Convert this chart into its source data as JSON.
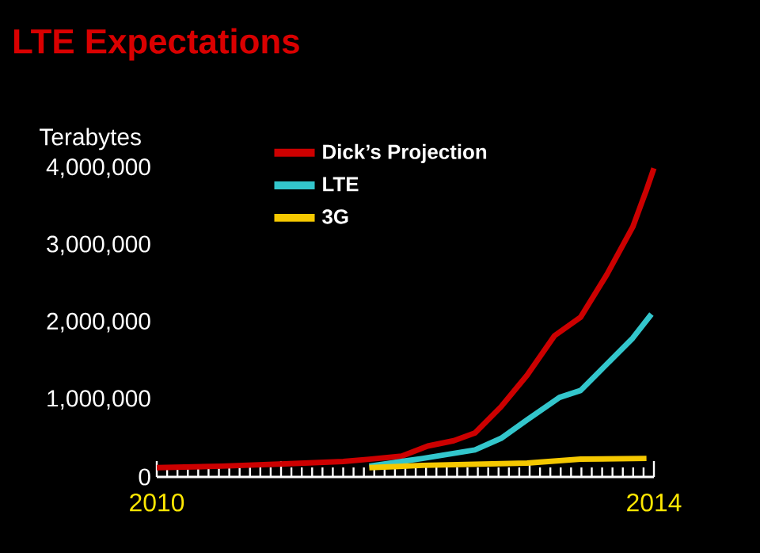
{
  "chart_data": {
    "type": "line",
    "title": "LTE Expectations",
    "ylabel": "Terabytes",
    "xlim": [
      2010,
      2014
    ],
    "ylim": [
      0,
      4000000
    ],
    "xticks": [
      2010,
      {
        "value": 2011,
        "label": null
      },
      {
        "value": 2012,
        "label": null
      },
      {
        "value": 2013,
        "label": null
      },
      2014
    ],
    "yticks": [
      0,
      {
        "value": 1000000,
        "label": "1,000,000"
      },
      {
        "value": 2000000,
        "label": "2,000,000"
      },
      {
        "value": 3000000,
        "label": "3,000,000"
      },
      {
        "value": 4000000,
        "label": "4,000,000"
      }
    ],
    "legend": "top",
    "marker": "none",
    "line_style": "solid",
    "series": [
      {
        "name": "Dick’s Projection",
        "color": "#cc0000",
        "x": [
          2010.0,
          2010.52,
          2011.03,
          2011.5,
          2011.71,
          2011.97,
          2012.18,
          2012.39,
          2012.56,
          2012.77,
          2012.98,
          2013.2,
          2013.41,
          2013.62,
          2013.83,
          2013.94,
          2014.0
        ],
        "values": [
          120000,
          140000,
          170000,
          200000,
          230000,
          270000,
          400000,
          470000,
          570000,
          910000,
          1320000,
          1830000,
          2070000,
          2620000,
          3240000,
          3720000,
          4000000
        ]
      },
      {
        "name": "LTE",
        "color": "#33c6cc",
        "x": [
          2011.71,
          2012.14,
          2012.56,
          2012.77,
          2012.98,
          2013.24,
          2013.41,
          2013.62,
          2013.83,
          2013.98
        ],
        "values": [
          140000,
          240000,
          350000,
          500000,
          740000,
          1030000,
          1120000,
          1460000,
          1800000,
          2110000
        ]
      },
      {
        "name": "3G",
        "color": "#f5c800",
        "x": [
          2011.71,
          2012.14,
          2012.98,
          2013.41,
          2013.94
        ],
        "values": [
          120000,
          150000,
          180000,
          230000,
          240000
        ]
      }
    ]
  }
}
